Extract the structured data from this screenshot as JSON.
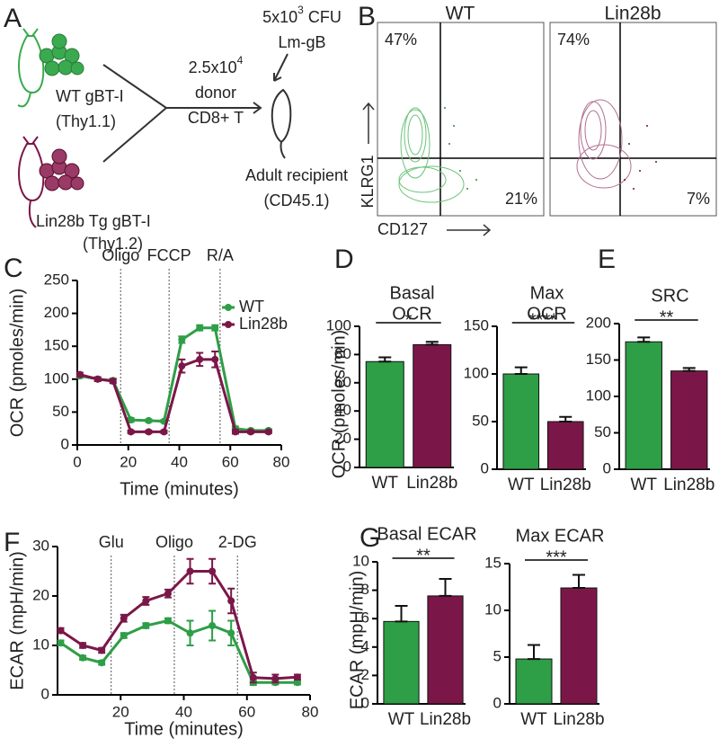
{
  "diagram": {
    "label": "A",
    "donors": [
      {
        "name": "WT gBT-I",
        "marker": "(Thy1.1)"
      },
      {
        "name": "Lin28b Tg gBT-I",
        "marker": "(Thy1.2)"
      }
    ],
    "transfer": {
      "dose_base": "2.5x10",
      "dose_exp": "4",
      "lines": [
        "donor",
        "CD8+ T"
      ]
    },
    "infection": {
      "dose_base": "5x10",
      "dose_exp": "3",
      "dose_unit": " CFU",
      "strain": "Lm-gB"
    },
    "recipient": [
      "Adult recipient",
      "(CD45.1)"
    ]
  },
  "flow": {
    "label": "B",
    "ylabel": "KLRG1",
    "xlabel": "CD127",
    "plots": [
      {
        "title": "WT",
        "values": [
          47,
          21
        ],
        "value_labels": [
          "47%",
          "21%"
        ]
      },
      {
        "title": "Lin28b",
        "values": [
          74,
          7
        ],
        "value_labels": [
          "74%",
          "7%"
        ]
      }
    ]
  },
  "chart_data": [
    {
      "type": "line",
      "panel": "C",
      "ylabel": "OCR (pmoles/min)",
      "xlabel": "Time (minutes)",
      "x": [
        1,
        8,
        14,
        21,
        28,
        34,
        41,
        48,
        54,
        62,
        68,
        75
      ],
      "series": [
        {
          "name": "WT",
          "color": "#2e9e47",
          "values": [
            105,
            100,
            98,
            38,
            37,
            36,
            160,
            178,
            178,
            25,
            22,
            22
          ],
          "errors": [
            3,
            3,
            3,
            3,
            2,
            2,
            5,
            4,
            4,
            3,
            2,
            2
          ]
        },
        {
          "name": "Lin28b",
          "color": "#7b1748",
          "values": [
            107,
            100,
            97,
            20,
            20,
            20,
            120,
            130,
            130,
            20,
            20,
            20
          ],
          "errors": [
            3,
            3,
            3,
            2,
            2,
            2,
            10,
            10,
            12,
            3,
            2,
            2
          ]
        }
      ],
      "xlim": [
        0,
        80
      ],
      "xticks": [
        0,
        20,
        40,
        60,
        80
      ],
      "ylim": [
        0,
        250
      ],
      "yticks": [
        0,
        50,
        100,
        150,
        200,
        250
      ],
      "annotations": [
        {
          "label": "Oligo",
          "x": 17
        },
        {
          "label": "FCCP",
          "x": 36
        },
        {
          "label": "R/A",
          "x": 56
        }
      ],
      "legend": "upper right"
    },
    {
      "type": "bar",
      "panel": "D",
      "title": [
        "Basal",
        "OCR"
      ],
      "ylabel": "OCR (pmoles/min)",
      "categories": [
        "WT",
        "Lin28b"
      ],
      "values": [
        75,
        87
      ],
      "errors": [
        3,
        2
      ],
      "colors": [
        "#2e9e47",
        "#7b1748"
      ],
      "ylim": [
        0,
        100
      ],
      "yticks": [
        0,
        20,
        40,
        60,
        80,
        100
      ],
      "significance": "*"
    },
    {
      "type": "bar",
      "title": [
        "Max",
        "OCR"
      ],
      "categories": [
        "WT",
        "Lin28b"
      ],
      "values": [
        100,
        50
      ],
      "errors": [
        7,
        5
      ],
      "colors": [
        "#2e9e47",
        "#7b1748"
      ],
      "ylim": [
        0,
        150
      ],
      "yticks": [
        0,
        50,
        100,
        150
      ],
      "significance": "****"
    },
    {
      "type": "bar",
      "panel": "E",
      "title": [
        "SRC"
      ],
      "categories": [
        "WT",
        "Lin28b"
      ],
      "values": [
        175,
        135
      ],
      "errors": [
        6,
        4
      ],
      "colors": [
        "#2e9e47",
        "#7b1748"
      ],
      "ylim": [
        0,
        200
      ],
      "yticks": [
        0,
        50,
        100,
        150,
        200
      ],
      "significance": "**"
    },
    {
      "type": "line",
      "panel": "F",
      "ylabel": "ECAR (mpH/min)",
      "xlabel": "Time (minutes)",
      "x": [
        1,
        8,
        14,
        21,
        28,
        35,
        42,
        49,
        55,
        62,
        69,
        76
      ],
      "series": [
        {
          "name": "WT",
          "color": "#2e9e47",
          "values": [
            10.5,
            7.5,
            6.5,
            12,
            14,
            15,
            12.5,
            14,
            12.5,
            2.5,
            2.5,
            2.5
          ],
          "errors": [
            0.5,
            0.4,
            0.4,
            0.5,
            0.5,
            0.5,
            2.5,
            3,
            2.5,
            0.5,
            0.4,
            0.4
          ]
        },
        {
          "name": "Lin28b",
          "color": "#7b1748",
          "values": [
            13,
            10,
            9,
            15.5,
            19,
            20.5,
            25,
            25,
            19,
            3.5,
            3.3,
            3.6
          ],
          "errors": [
            0.5,
            0.5,
            0.5,
            0.7,
            0.8,
            0.8,
            2.5,
            2.5,
            2.5,
            1,
            0.8,
            0.5
          ]
        }
      ],
      "xlim": [
        0,
        80
      ],
      "xticks": [
        20,
        40,
        60,
        80
      ],
      "ylim": [
        0,
        30
      ],
      "yticks": [
        0,
        10,
        20,
        30
      ],
      "annotations": [
        {
          "label": "Glu",
          "x": 17
        },
        {
          "label": "Oligo",
          "x": 37
        },
        {
          "label": "2-DG",
          "x": 57
        }
      ]
    },
    {
      "type": "bar",
      "panel": "G",
      "title": [
        "Basal ECAR"
      ],
      "ylabel": "ECAR (mpH/min)",
      "categories": [
        "WT",
        "Lin28b"
      ],
      "values": [
        5.8,
        7.6
      ],
      "errors": [
        1.1,
        1.2
      ],
      "colors": [
        "#2e9e47",
        "#7b1748"
      ],
      "ylim": [
        0,
        10
      ],
      "yticks": [
        0,
        2,
        4,
        6,
        8,
        10
      ],
      "significance": "**"
    },
    {
      "type": "bar",
      "title": [
        "Max ECAR"
      ],
      "categories": [
        "WT",
        "Lin28b"
      ],
      "values": [
        4.8,
        12.4
      ],
      "errors": [
        1.5,
        1.4
      ],
      "colors": [
        "#2e9e47",
        "#7b1748"
      ],
      "ylim": [
        0,
        15
      ],
      "yticks": [
        0,
        5,
        10,
        15
      ],
      "significance": "***"
    }
  ]
}
